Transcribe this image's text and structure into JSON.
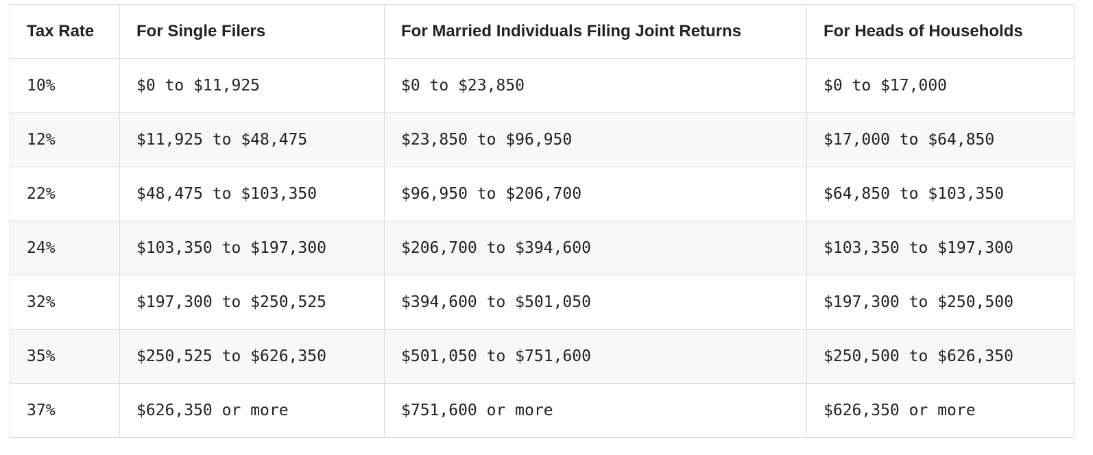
{
  "table": {
    "headers": [
      "Tax Rate",
      "For Single Filers",
      "For Married Individuals Filing Joint Returns",
      "For Heads of Households"
    ],
    "rows": [
      [
        "10%",
        "$0 to $11,925",
        "$0 to $23,850",
        "$0 to $17,000"
      ],
      [
        "12%",
        "$11,925 to $48,475",
        "$23,850 to $96,950",
        "$17,000 to $64,850"
      ],
      [
        "22%",
        "$48,475 to $103,350",
        "$96,950 to $206,700",
        "$64,850 to $103,350"
      ],
      [
        "24%",
        "$103,350 to $197,300",
        "$206,700 to $394,600",
        "$103,350 to $197,300"
      ],
      [
        "32%",
        "$197,300 to $250,525",
        "$394,600 to $501,050",
        "$197,300 to $250,500"
      ],
      [
        "35%",
        "$250,525 to $626,350",
        "$501,050 to $751,600",
        "$250,500 to $626,350"
      ],
      [
        "37%",
        "$626,350 or more",
        "$751,600 or more",
        "$626,350 or more"
      ]
    ]
  }
}
